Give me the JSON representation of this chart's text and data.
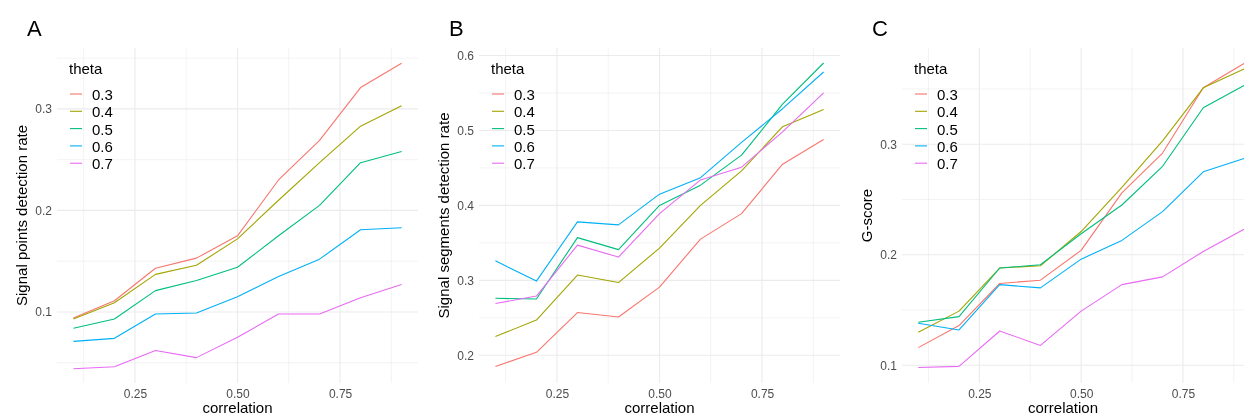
{
  "chart_data": [
    {
      "type": "line",
      "title": "A",
      "xlabel": "correlation",
      "ylabel": "Signal points detection rate",
      "legend_title": "theta",
      "legend": "top left",
      "grid": true,
      "x": [
        0.1,
        0.2,
        0.3,
        0.4,
        0.5,
        0.6,
        0.7,
        0.8,
        0.9
      ],
      "xlim": [
        0.06,
        0.94
      ],
      "xticks": [
        {
          "value": 0.125,
          "label": null
        },
        {
          "value": 0.25,
          "label": "0.25"
        },
        {
          "value": 0.375,
          "label": null
        },
        {
          "value": 0.5,
          "label": "0.50"
        },
        {
          "value": 0.625,
          "label": null
        },
        {
          "value": 0.75,
          "label": "0.75"
        },
        {
          "value": 0.875,
          "label": null
        }
      ],
      "ylim": [
        0.03,
        0.36
      ],
      "yticks": [
        {
          "value": 0.05,
          "label": null
        },
        0.1,
        {
          "value": 0.15,
          "label": null
        },
        0.2,
        {
          "value": 0.25,
          "label": null
        },
        0.3,
        {
          "value": 0.35,
          "label": null
        }
      ],
      "series": [
        {
          "name": "0.3",
          "color": "#f8766d",
          "values": [
            0.094,
            0.111,
            0.143,
            0.153,
            0.175,
            0.23,
            0.269,
            0.321,
            0.345
          ]
        },
        {
          "name": "0.4",
          "color": "#a3a500",
          "values": [
            0.093,
            0.109,
            0.137,
            0.146,
            0.172,
            0.21,
            0.247,
            0.283,
            0.303
          ]
        },
        {
          "name": "0.5",
          "color": "#00bf7d",
          "values": [
            0.084,
            0.093,
            0.121,
            0.131,
            0.144,
            0.175,
            0.205,
            0.247,
            0.258
          ]
        },
        {
          "name": "0.6",
          "color": "#00b0f6",
          "values": [
            0.071,
            0.074,
            0.098,
            0.099,
            0.115,
            0.135,
            0.152,
            0.181,
            0.183
          ]
        },
        {
          "name": "0.7",
          "color": "#e76bf3",
          "values": [
            0.044,
            0.046,
            0.062,
            0.055,
            0.075,
            0.098,
            0.098,
            0.114,
            0.127
          ]
        }
      ]
    },
    {
      "type": "line",
      "title": "B",
      "xlabel": "correlation",
      "ylabel": "Signal segments detection rate",
      "legend_title": "theta",
      "legend": "top left",
      "grid": true,
      "x": [
        0.1,
        0.2,
        0.3,
        0.4,
        0.5,
        0.6,
        0.7,
        0.8,
        0.9
      ],
      "xlim": [
        0.06,
        0.94
      ],
      "xticks": [
        {
          "value": 0.125,
          "label": null
        },
        {
          "value": 0.25,
          "label": "0.25"
        },
        {
          "value": 0.375,
          "label": null
        },
        {
          "value": 0.5,
          "label": "0.50"
        },
        {
          "value": 0.625,
          "label": null
        },
        {
          "value": 0.75,
          "label": "0.75"
        },
        {
          "value": 0.875,
          "label": null
        }
      ],
      "ylim": [
        0.163,
        0.61
      ],
      "yticks": [
        0.2,
        {
          "value": 0.25,
          "label": null
        },
        0.3,
        {
          "value": 0.35,
          "label": null
        },
        0.4,
        {
          "value": 0.45,
          "label": null
        },
        0.5,
        {
          "value": 0.55,
          "label": null
        },
        0.6
      ],
      "series": [
        {
          "name": "0.3",
          "color": "#f8766d",
          "values": [
            0.185,
            0.204,
            0.257,
            0.251,
            0.291,
            0.355,
            0.389,
            0.455,
            0.488
          ]
        },
        {
          "name": "0.4",
          "color": "#a3a500",
          "values": [
            0.225,
            0.247,
            0.307,
            0.297,
            0.343,
            0.4,
            0.446,
            0.505,
            0.528
          ]
        },
        {
          "name": "0.5",
          "color": "#00bf7d",
          "values": [
            0.276,
            0.275,
            0.357,
            0.341,
            0.4,
            0.427,
            0.467,
            0.535,
            0.59
          ]
        },
        {
          "name": "0.6",
          "color": "#00b0f6",
          "values": [
            0.326,
            0.299,
            0.378,
            0.374,
            0.415,
            0.437,
            0.484,
            0.529,
            0.578
          ]
        },
        {
          "name": "0.7",
          "color": "#e76bf3",
          "values": [
            0.269,
            0.279,
            0.347,
            0.331,
            0.389,
            0.434,
            0.451,
            0.498,
            0.55
          ]
        }
      ]
    },
    {
      "type": "line",
      "title": "C",
      "xlabel": "correlation",
      "ylabel": "G-score",
      "legend_title": "theta",
      "legend": "top left",
      "grid": true,
      "x": [
        0.1,
        0.2,
        0.3,
        0.4,
        0.5,
        0.6,
        0.7,
        0.8,
        0.9
      ],
      "xlim": [
        0.06,
        0.9
      ],
      "xticks": [
        {
          "value": 0.125,
          "label": null
        },
        {
          "value": 0.25,
          "label": "0.25"
        },
        {
          "value": 0.375,
          "label": null
        },
        {
          "value": 0.5,
          "label": "0.50"
        },
        {
          "value": 0.625,
          "label": null
        },
        {
          "value": 0.75,
          "label": "0.75"
        },
        {
          "value": 0.875,
          "label": null
        }
      ],
      "ylim": [
        0.084,
        0.387
      ],
      "yticks": [
        0.1,
        {
          "value": 0.15,
          "label": null
        },
        0.2,
        {
          "value": 0.25,
          "label": null
        },
        0.3,
        {
          "value": 0.35,
          "label": null
        }
      ],
      "series": [
        {
          "name": "0.3",
          "color": "#f8766d",
          "values": [
            0.116,
            0.136,
            0.174,
            0.177,
            0.204,
            0.256,
            0.292,
            0.351,
            0.373
          ]
        },
        {
          "name": "0.4",
          "color": "#a3a500",
          "values": [
            0.13,
            0.149,
            0.188,
            0.19,
            0.221,
            0.261,
            0.303,
            0.351,
            0.368
          ]
        },
        {
          "name": "0.5",
          "color": "#00bf7d",
          "values": [
            0.139,
            0.144,
            0.188,
            0.191,
            0.219,
            0.245,
            0.28,
            0.333,
            0.353
          ]
        },
        {
          "name": "0.6",
          "color": "#00b0f6",
          "values": [
            0.138,
            0.132,
            0.173,
            0.17,
            0.196,
            0.213,
            0.239,
            0.275,
            0.287
          ]
        },
        {
          "name": "0.7",
          "color": "#e76bf3",
          "values": [
            0.098,
            0.099,
            0.131,
            0.118,
            0.149,
            0.173,
            0.18,
            0.203,
            0.223
          ]
        }
      ]
    }
  ]
}
